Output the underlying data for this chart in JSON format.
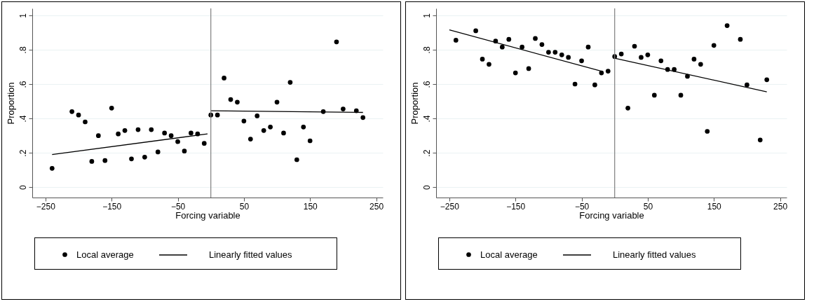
{
  "chart_data": [
    {
      "type": "scatter",
      "xlabel": "Forcing variable",
      "ylabel": "Proportion",
      "xlim": [
        -270,
        260
      ],
      "ylim": [
        -0.06,
        1.04
      ],
      "xticks": [
        -250,
        -150,
        -50,
        50,
        150,
        250
      ],
      "yticks": [
        {
          "value": 0,
          "label": "0"
        },
        {
          "value": 0.2,
          "label": ".2"
        },
        {
          "value": 0.4,
          "label": ".4"
        },
        {
          "value": 0.6,
          "label": ".6"
        },
        {
          "value": 0.8,
          "label": ".8"
        },
        {
          "value": 1,
          "label": "1"
        }
      ],
      "grid": "y",
      "legend": "bottom",
      "ref_lines": [
        {
          "axis": "x",
          "value": 0,
          "color": "#7f7f7f"
        }
      ],
      "series": [
        {
          "name": "Local average",
          "type": "scatter",
          "marker": "circle",
          "color": "#000000",
          "x": [
            -240,
            -210,
            -200,
            -190,
            -180,
            -170,
            -160,
            -150,
            -140,
            -130,
            -120,
            -110,
            -100,
            -90,
            -80,
            -70,
            -60,
            -50,
            -40,
            -30,
            -20,
            -10,
            0,
            10,
            20,
            30,
            40,
            50,
            60,
            70,
            80,
            90,
            100,
            110,
            120,
            130,
            140,
            150,
            170,
            190,
            200,
            220,
            230
          ],
          "values": [
            0.11,
            0.44,
            0.42,
            0.38,
            0.15,
            0.3,
            0.155,
            0.46,
            0.31,
            0.33,
            0.165,
            0.335,
            0.175,
            0.335,
            0.205,
            0.315,
            0.3,
            0.265,
            0.21,
            0.315,
            0.31,
            0.255,
            0.42,
            0.42,
            0.635,
            0.51,
            0.495,
            0.385,
            0.28,
            0.415,
            0.33,
            0.35,
            0.495,
            0.315,
            0.61,
            0.16,
            0.35,
            0.27,
            0.44,
            0.845,
            0.455,
            0.445,
            0.405
          ]
        },
        {
          "name": "Linearly fitted values",
          "type": "line",
          "color": "#000000",
          "x": [
            -240,
            -5,
            -2,
            0,
            230
          ],
          "values": [
            0.19,
            0.31,
            null,
            0.445,
            0.435
          ]
        }
      ]
    },
    {
      "type": "scatter",
      "xlabel": "Forcing variable",
      "ylabel": "Proportion",
      "xlim": [
        -270,
        260
      ],
      "ylim": [
        -0.06,
        1.04
      ],
      "xticks": [
        -250,
        -150,
        -50,
        50,
        150,
        250
      ],
      "yticks": [
        {
          "value": 0,
          "label": "0"
        },
        {
          "value": 0.2,
          "label": ".2"
        },
        {
          "value": 0.4,
          "label": ".4"
        },
        {
          "value": 0.6,
          "label": ".6"
        },
        {
          "value": 0.8,
          "label": ".8"
        },
        {
          "value": 1,
          "label": "1"
        }
      ],
      "grid": "y",
      "legend": "bottom",
      "ref_lines": [
        {
          "axis": "x",
          "value": 0,
          "color": "#7f7f7f"
        }
      ],
      "series": [
        {
          "name": "Local average",
          "type": "scatter",
          "marker": "circle",
          "color": "#000000",
          "x": [
            -240,
            -210,
            -200,
            -190,
            -180,
            -170,
            -160,
            -150,
            -140,
            -130,
            -120,
            -110,
            -100,
            -90,
            -80,
            -70,
            -60,
            -50,
            -40,
            -30,
            -20,
            -10,
            0,
            10,
            20,
            30,
            40,
            50,
            60,
            70,
            80,
            90,
            100,
            110,
            120,
            130,
            140,
            150,
            170,
            190,
            200,
            220,
            230
          ],
          "values": [
            0.855,
            0.91,
            0.745,
            0.715,
            0.85,
            0.815,
            0.86,
            0.665,
            0.815,
            0.69,
            0.865,
            0.83,
            0.785,
            0.785,
            0.77,
            0.755,
            0.6,
            0.735,
            0.815,
            0.595,
            0.665,
            0.675,
            0.76,
            0.775,
            0.46,
            0.82,
            0.755,
            0.77,
            0.535,
            0.735,
            0.685,
            0.685,
            0.535,
            0.645,
            0.745,
            0.715,
            0.325,
            0.825,
            0.94,
            0.86,
            0.595,
            0.275,
            0.625
          ]
        },
        {
          "name": "Linearly fitted values",
          "type": "line",
          "color": "#000000",
          "x": [
            -250,
            -20,
            -2,
            0,
            230
          ],
          "values": [
            0.915,
            0.675,
            null,
            0.75,
            0.555
          ]
        }
      ]
    }
  ]
}
